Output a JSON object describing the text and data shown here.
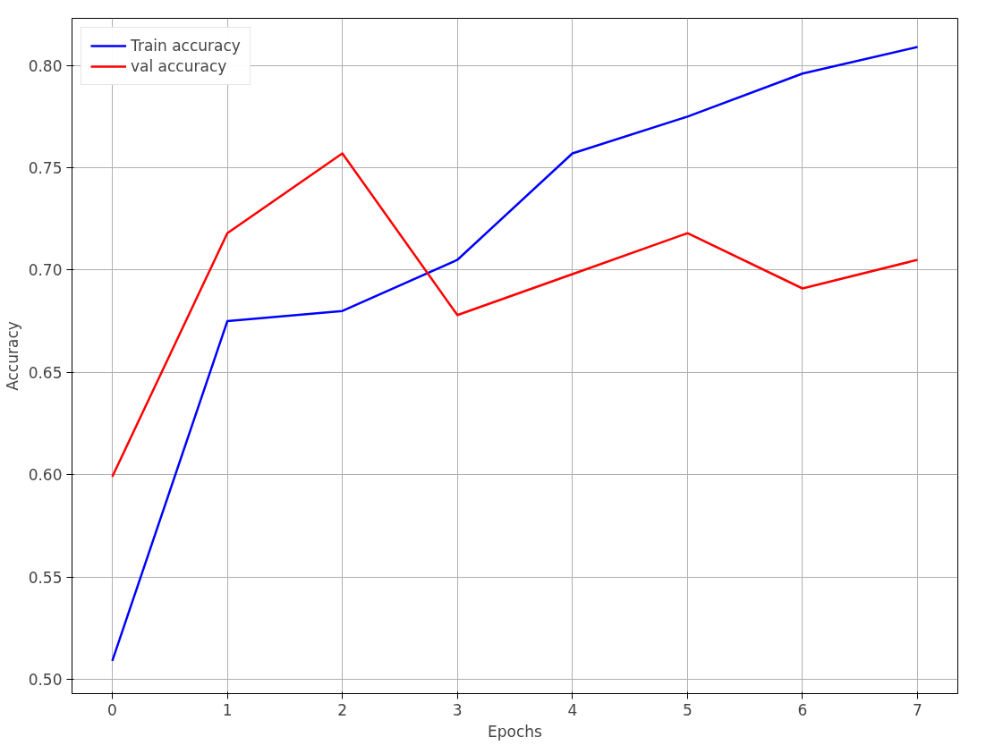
{
  "chart_data": {
    "type": "line",
    "xlabel": "Epochs",
    "ylabel": "Accuracy",
    "x": [
      0,
      1,
      2,
      3,
      4,
      5,
      6,
      7
    ],
    "series": [
      {
        "name": "Train accuracy",
        "color": "#0000ff",
        "values": [
          0.509,
          0.675,
          0.68,
          0.705,
          0.757,
          0.775,
          0.796,
          0.809
        ]
      },
      {
        "name": "val accuracy",
        "color": "#ff0000",
        "values": [
          0.599,
          0.718,
          0.757,
          0.678,
          0.698,
          0.718,
          0.691,
          0.705
        ]
      }
    ],
    "xlim": [
      -0.35,
      7.35
    ],
    "ylim": [
      0.493,
      0.823
    ],
    "xticks": [
      0,
      1,
      2,
      3,
      4,
      5,
      6,
      7
    ],
    "yticks": [
      {
        "value": 0.5,
        "label": "0.50"
      },
      {
        "value": 0.55,
        "label": "0.55"
      },
      {
        "value": 0.6,
        "label": "0.60"
      },
      {
        "value": 0.65,
        "label": "0.65"
      },
      {
        "value": 0.7,
        "label": "0.70"
      },
      {
        "value": 0.75,
        "label": "0.75"
      },
      {
        "value": 0.8,
        "label": "0.80"
      }
    ],
    "grid": true,
    "legend": "top left",
    "marker": "none",
    "line_style": "solid"
  }
}
